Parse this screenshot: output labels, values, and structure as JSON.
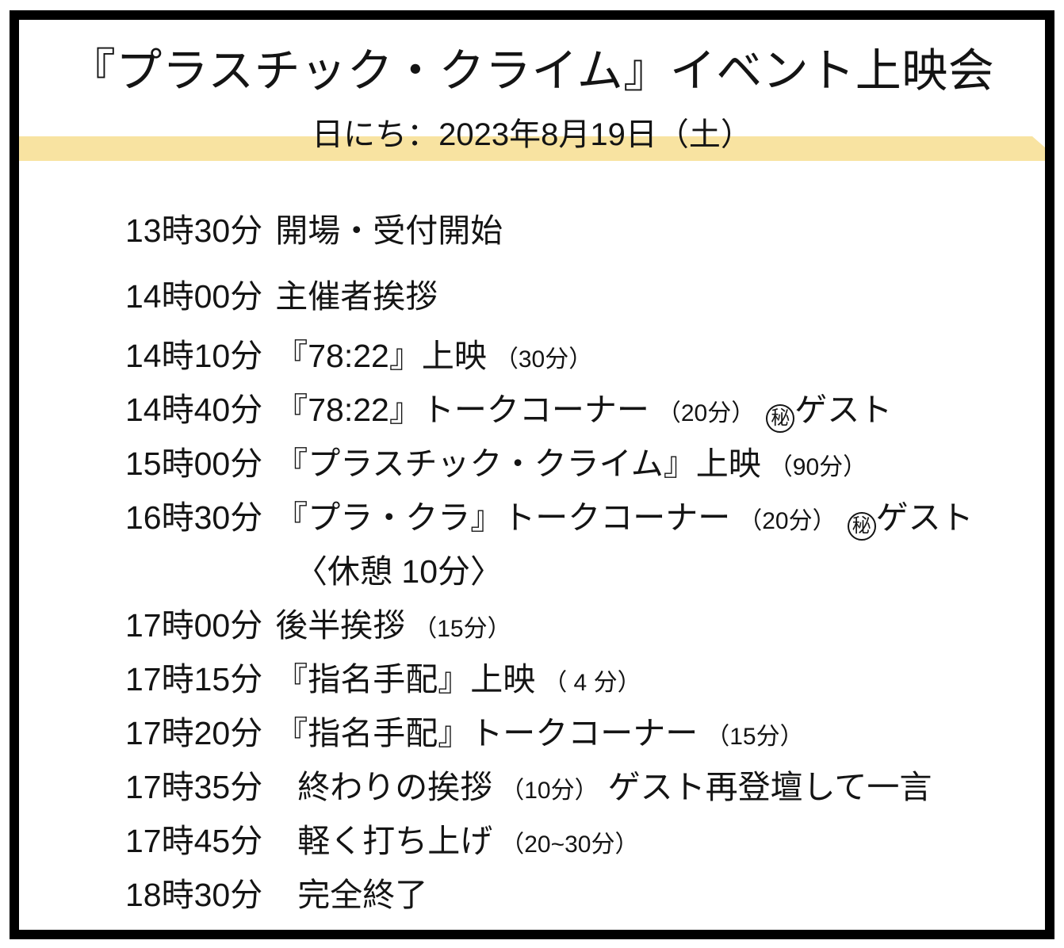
{
  "header": {
    "title": "『プラスチック・クライム』イベント上映会",
    "date_label": "日にち：2023年8月19日（土）"
  },
  "colors": {
    "highlight_band": "#F8E3A1",
    "frame_border": "#000000",
    "text": "#141414",
    "background": "#FFFFFF"
  },
  "schedule": [
    {
      "time": "13時30分",
      "segments": [
        {
          "text": "開場・受付開始"
        }
      ]
    },
    {
      "time": "14時00分",
      "segments": [
        {
          "text": "主催者挨拶"
        }
      ]
    },
    {
      "time": "14時10分",
      "segments": [
        {
          "text": "『78:22』上映"
        },
        {
          "text": "（30分）",
          "small": true
        }
      ]
    },
    {
      "time": "14時40分",
      "segments": [
        {
          "text": "『78:22』トークコーナー"
        },
        {
          "text": "（20分）",
          "small": true
        },
        {
          "text": "秘",
          "type": "hi-mark"
        },
        {
          "text": "ゲスト",
          "tight": true
        }
      ]
    },
    {
      "time": "15時00分",
      "segments": [
        {
          "text": "『プラスチック・クライム』上映"
        },
        {
          "text": "（90分）",
          "small": true
        }
      ]
    },
    {
      "time": "16時30分",
      "segments": [
        {
          "text": "『プラ・クラ』トークコーナー"
        },
        {
          "text": "（20分）",
          "small": true
        },
        {
          "text": "秘",
          "type": "hi-mark"
        },
        {
          "text": "ゲスト",
          "tight": true
        }
      ]
    },
    {
      "indent": true,
      "segments": [
        {
          "text": "〈休憩 10分〉"
        }
      ]
    },
    {
      "time": "17時00分",
      "segments": [
        {
          "text": "後半挨拶"
        },
        {
          "text": "（15分）",
          "small": true
        }
      ]
    },
    {
      "time": "17時15分",
      "segments": [
        {
          "text": "『指名手配』上映"
        },
        {
          "text": "（ 4 分）",
          "small": true
        }
      ]
    },
    {
      "time": "17時20分",
      "segments": [
        {
          "text": "『指名手配』トークコーナー"
        },
        {
          "text": "（15分）",
          "small": true
        }
      ]
    },
    {
      "time": "17時35分",
      "wide_gap": true,
      "segments": [
        {
          "text": "終わりの挨拶"
        },
        {
          "text": "（10分）",
          "small": true
        },
        {
          "text": "ゲスト再登壇して一言"
        }
      ]
    },
    {
      "time": "17時45分",
      "wide_gap": true,
      "segments": [
        {
          "text": "軽く打ち上げ"
        },
        {
          "text": "（20~30分）",
          "small": true
        }
      ]
    },
    {
      "time": "18時30分",
      "wide_gap": true,
      "segments": [
        {
          "text": "完全終了"
        }
      ]
    }
  ]
}
